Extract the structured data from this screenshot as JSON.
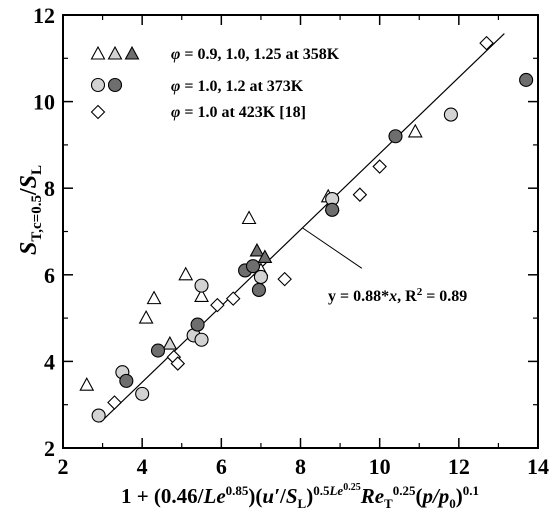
{
  "chart_data": {
    "type": "scatter",
    "xlim": [
      2,
      14
    ],
    "ylim": [
      2,
      12
    ],
    "xticks": [
      2,
      4,
      6,
      8,
      10,
      12,
      14
    ],
    "yticks": [
      2,
      4,
      6,
      8,
      10,
      12
    ],
    "xtick_labels": [
      "2",
      "4",
      "6",
      "8",
      "10",
      "12",
      "14"
    ],
    "ytick_labels": [
      "2",
      "4",
      "6",
      "8",
      "10",
      "12"
    ],
    "xlabel": {
      "part1": "1 + (0.46/",
      "le1": "Le",
      "exp1": "0.85",
      "part2": ")(",
      "u": "u′",
      "part3": "/",
      "s": "S",
      "s_sub": "L",
      "part4": ")",
      "exp2": "0.5",
      "exp2_le": "Le",
      "exp2_sup": "0.25",
      "re": "Re",
      "re_sub": "T",
      "exp3": "0.25",
      "part5": "(",
      "p": "p/p",
      "p_sub": "0",
      "part6": ")",
      "exp4": "0.1"
    },
    "ylabel": {
      "s1": "S",
      "sub1": "T,c=0.5",
      "slash": "/",
      "s2": "S",
      "sub2": "L"
    },
    "legend": {
      "placement": "top-left",
      "entries": [
        {
          "phi": "φ",
          "text": " = 0.9, 1.0, 1.25 at 358K",
          "markers": [
            "triangle-open",
            "triangle-light",
            "triangle-dark"
          ]
        },
        {
          "phi": "φ",
          "text": " = 1.0, 1.2 at 373K",
          "markers": [
            "circle-light",
            "circle-dark"
          ]
        },
        {
          "phi": "φ",
          "text": " = 1.0 at 423K [18]",
          "markers": [
            "diamond-open"
          ]
        }
      ]
    },
    "annotation": {
      "y_part": "y = 0.88*",
      "x_part": "x",
      "r_part": ", R",
      "r_sup": "2",
      "rest": " = 0.89"
    },
    "fit_line": {
      "slope": 0.88,
      "intercept": 0.0,
      "x_range": [
        2.95,
        13.15
      ],
      "r2": 0.89
    },
    "colors": {
      "open": "#ffffff",
      "light": "#d3d3d3",
      "dark": "#6e6e6e",
      "edge": "#000000"
    },
    "series": [
      {
        "marker": "triangle-open",
        "x": [
          2.6,
          4.1,
          4.3,
          5.1,
          5.5,
          6.7,
          7.0,
          8.7,
          10.9
        ],
        "y": [
          3.45,
          5.0,
          5.45,
          6.0,
          5.5,
          7.3,
          6.1,
          7.8,
          9.3
        ]
      },
      {
        "marker": "triangle-light",
        "x": [
          4.7,
          8.8
        ],
        "y": [
          4.4,
          7.6
        ]
      },
      {
        "marker": "triangle-dark",
        "x": [
          6.9,
          7.1
        ],
        "y": [
          6.55,
          6.4
        ]
      },
      {
        "marker": "circle-light",
        "x": [
          2.9,
          3.5,
          4.0,
          5.3,
          5.5,
          5.5,
          7.0,
          8.8,
          11.8
        ],
        "y": [
          2.75,
          3.75,
          3.25,
          4.6,
          4.5,
          5.75,
          5.95,
          7.75,
          9.7
        ]
      },
      {
        "marker": "circle-dark",
        "x": [
          3.6,
          4.4,
          5.4,
          6.6,
          6.8,
          6.95,
          8.8,
          10.4,
          13.7
        ],
        "y": [
          3.55,
          4.25,
          4.85,
          6.1,
          6.2,
          5.65,
          7.5,
          9.2,
          10.5
        ]
      },
      {
        "marker": "diamond-open",
        "x": [
          3.3,
          4.8,
          4.9,
          5.9,
          6.3,
          7.6,
          9.5,
          10.0,
          12.7
        ],
        "y": [
          3.05,
          4.1,
          3.95,
          5.3,
          5.45,
          5.9,
          7.85,
          8.5,
          11.35
        ]
      }
    ]
  }
}
